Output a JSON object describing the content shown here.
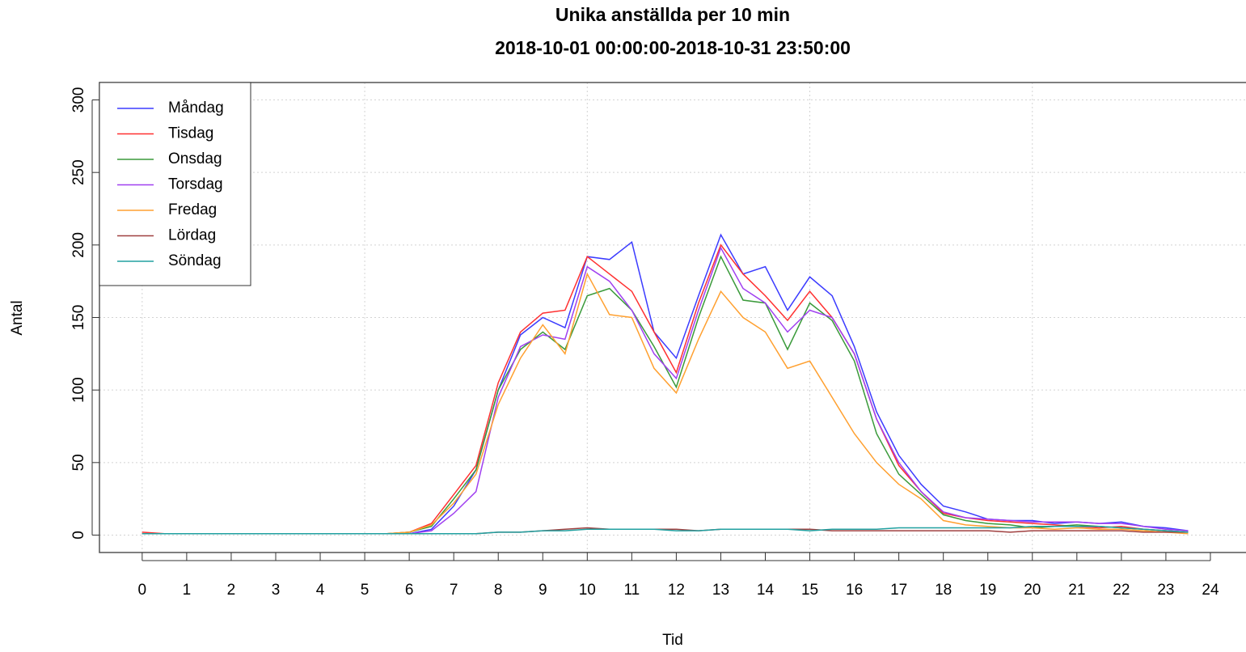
{
  "chart_data": {
    "type": "line",
    "title": "Unika anställda per 10 min",
    "subtitle": "2018-10-01 00:00:00-2018-10-31 23:50:00",
    "x_label": "Tid",
    "y_label": "Antal",
    "x": [
      0,
      0.5,
      1,
      1.5,
      2,
      2.5,
      3,
      3.5,
      4,
      4.5,
      5,
      5.5,
      6,
      6.5,
      7,
      7.5,
      8,
      8.5,
      9,
      9.5,
      10,
      10.5,
      11,
      11.5,
      12,
      12.5,
      13,
      13.5,
      14,
      14.5,
      15,
      15.5,
      16,
      16.5,
      17,
      17.5,
      18,
      18.5,
      19,
      19.5,
      20,
      20.5,
      21,
      21.5,
      22,
      22.5,
      23,
      23.5
    ],
    "series": [
      {
        "name": "Måndag",
        "color": "#3b3bff",
        "values": [
          1,
          1,
          1,
          1,
          1,
          1,
          1,
          1,
          1,
          1,
          1,
          1,
          1,
          4,
          20,
          45,
          100,
          138,
          150,
          143,
          192,
          190,
          202,
          140,
          122,
          165,
          207,
          180,
          185,
          155,
          178,
          165,
          130,
          85,
          55,
          35,
          20,
          16,
          11,
          10,
          10,
          8,
          9,
          8,
          9,
          6,
          5,
          3
        ]
      },
      {
        "name": "Tisdag",
        "color": "#ff3030",
        "values": [
          2,
          1,
          1,
          1,
          1,
          1,
          1,
          1,
          1,
          1,
          1,
          1,
          2,
          8,
          28,
          48,
          105,
          140,
          153,
          155,
          192,
          180,
          168,
          140,
          112,
          160,
          200,
          180,
          165,
          148,
          168,
          150,
          125,
          80,
          48,
          30,
          15,
          12,
          10,
          9,
          8,
          7,
          6,
          5,
          6,
          4,
          3,
          2
        ]
      },
      {
        "name": "Onsdag",
        "color": "#3a9a3a",
        "values": [
          1,
          1,
          1,
          1,
          1,
          1,
          1,
          1,
          1,
          1,
          1,
          1,
          2,
          6,
          25,
          45,
          100,
          128,
          140,
          128,
          165,
          170,
          155,
          130,
          102,
          150,
          192,
          162,
          160,
          128,
          160,
          148,
          120,
          70,
          42,
          28,
          14,
          10,
          8,
          7,
          5,
          6,
          7,
          6,
          5,
          4,
          3,
          2
        ]
      },
      {
        "name": "Torsdag",
        "color": "#a040f0",
        "values": [
          1,
          1,
          1,
          1,
          1,
          1,
          1,
          1,
          1,
          1,
          1,
          1,
          1,
          3,
          15,
          30,
          95,
          130,
          138,
          135,
          185,
          175,
          155,
          125,
          108,
          155,
          198,
          170,
          160,
          140,
          155,
          150,
          125,
          80,
          50,
          30,
          16,
          12,
          11,
          10,
          9,
          9,
          9,
          8,
          8,
          6,
          4,
          3
        ]
      },
      {
        "name": "Fredag",
        "color": "#ffa030",
        "values": [
          1,
          1,
          1,
          1,
          1,
          1,
          1,
          1,
          1,
          1,
          1,
          1,
          2,
          7,
          22,
          42,
          90,
          122,
          145,
          125,
          180,
          152,
          150,
          115,
          98,
          135,
          168,
          150,
          140,
          115,
          120,
          95,
          70,
          50,
          35,
          25,
          10,
          7,
          6,
          5,
          5,
          4,
          5,
          4,
          4,
          3,
          2,
          1
        ]
      },
      {
        "name": "Lördag",
        "color": "#a04040",
        "values": [
          1,
          1,
          1,
          1,
          1,
          1,
          1,
          1,
          1,
          1,
          1,
          1,
          1,
          1,
          1,
          1,
          2,
          2,
          3,
          4,
          5,
          4,
          4,
          4,
          4,
          3,
          4,
          4,
          4,
          4,
          4,
          3,
          3,
          3,
          3,
          3,
          3,
          3,
          3,
          2,
          3,
          3,
          3,
          3,
          3,
          2,
          2,
          2
        ]
      },
      {
        "name": "Söndag",
        "color": "#20a0a0",
        "values": [
          1,
          1,
          1,
          1,
          1,
          1,
          1,
          1,
          1,
          1,
          1,
          1,
          1,
          1,
          1,
          1,
          2,
          2,
          3,
          3,
          4,
          4,
          4,
          4,
          3,
          3,
          4,
          4,
          4,
          4,
          3,
          4,
          4,
          4,
          5,
          5,
          5,
          5,
          5,
          5,
          6,
          6,
          6,
          6,
          5,
          4,
          3,
          2
        ]
      }
    ],
    "xlim": [
      -0.96,
      24.8
    ],
    "ylim": [
      -12,
      312
    ],
    "xticks": [
      0,
      1,
      2,
      3,
      4,
      5,
      6,
      7,
      8,
      9,
      10,
      11,
      12,
      13,
      14,
      15,
      16,
      17,
      18,
      19,
      20,
      21,
      22,
      23,
      24
    ],
    "yticks": [
      0,
      50,
      100,
      150,
      200,
      250,
      300
    ],
    "x_grid": [
      0,
      5,
      10,
      15,
      20
    ],
    "grid": true,
    "legend": "top-left"
  }
}
